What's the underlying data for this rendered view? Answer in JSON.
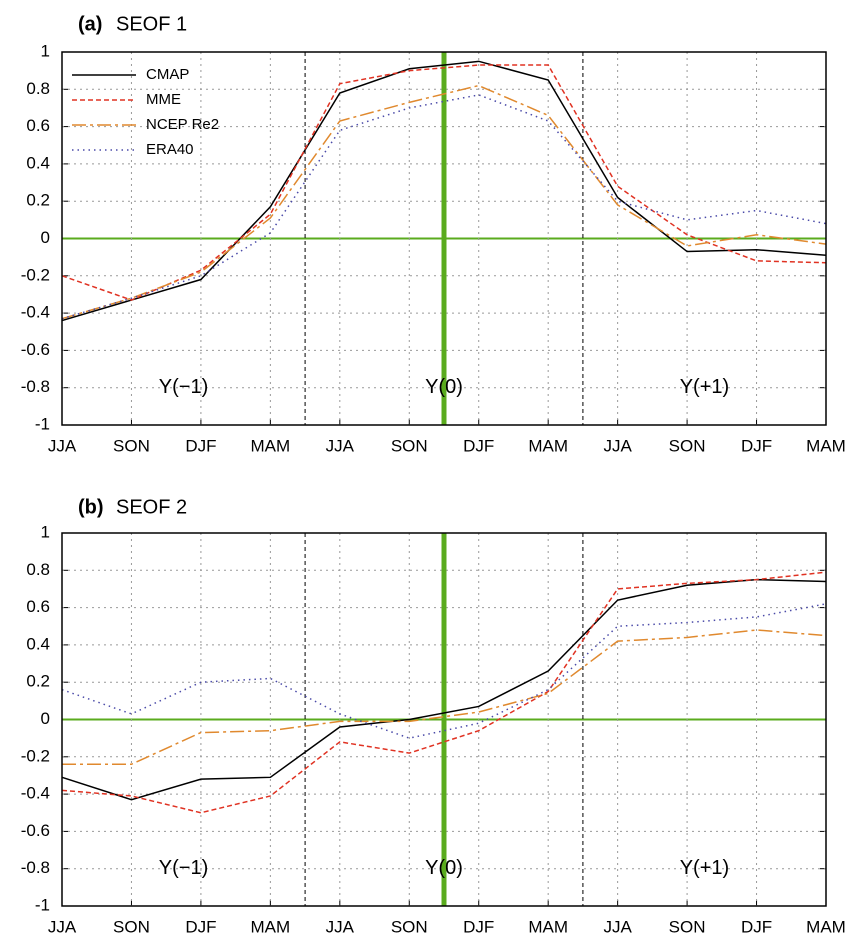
{
  "chart_data": [
    {
      "type": "line",
      "label": "(a)",
      "title": "SEOF 1",
      "categories": [
        "JJA",
        "SON",
        "DJF",
        "MAM",
        "JJA",
        "SON",
        "DJF",
        "MAM",
        "JJA",
        "SON",
        "DJF",
        "MAM"
      ],
      "ylim": [
        -1,
        1
      ],
      "yticks": [
        -1,
        -0.8,
        -0.6,
        -0.4,
        -0.2,
        0,
        0.2,
        0.4,
        0.6,
        0.8,
        1
      ],
      "grid": true,
      "legend": "upper left",
      "annotations": [
        "Y(−1)",
        "Y(0)",
        "Y(+1)"
      ],
      "series": [
        {
          "name": "CMAP",
          "color": "#000000",
          "dash": "solid",
          "values": [
            -0.44,
            -0.33,
            -0.22,
            0.17,
            0.78,
            0.91,
            0.95,
            0.85,
            0.22,
            -0.07,
            -0.06,
            -0.09
          ]
        },
        {
          "name": "MME",
          "color": "#e03222",
          "dash": "dashed",
          "values": [
            -0.2,
            -0.33,
            -0.17,
            0.13,
            0.83,
            0.9,
            0.93,
            0.93,
            0.28,
            0.02,
            -0.12,
            -0.13
          ]
        },
        {
          "name": "NCEP Re2",
          "color": "#e0892e",
          "dash": "dashdot",
          "values": [
            -0.43,
            -0.32,
            -0.18,
            0.11,
            0.63,
            0.73,
            0.82,
            0.66,
            0.18,
            -0.04,
            0.02,
            -0.03
          ]
        },
        {
          "name": "ERA40",
          "color": "#4a4aa8",
          "dash": "dotted",
          "values": [
            -0.43,
            -0.32,
            -0.2,
            0.03,
            0.58,
            0.7,
            0.77,
            0.63,
            0.2,
            0.1,
            0.15,
            0.08
          ]
        }
      ]
    },
    {
      "type": "line",
      "label": "(b)",
      "title": "SEOF 2",
      "categories": [
        "JJA",
        "SON",
        "DJF",
        "MAM",
        "JJA",
        "SON",
        "DJF",
        "MAM",
        "JJA",
        "SON",
        "DJF",
        "MAM"
      ],
      "ylim": [
        -1,
        1
      ],
      "yticks": [
        -1,
        -0.8,
        -0.6,
        -0.4,
        -0.2,
        0,
        0.2,
        0.4,
        0.6,
        0.8,
        1
      ],
      "grid": true,
      "annotations": [
        "Y(−1)",
        "Y(0)",
        "Y(+1)"
      ],
      "series": [
        {
          "name": "CMAP",
          "color": "#000000",
          "dash": "solid",
          "values": [
            -0.31,
            -0.43,
            -0.32,
            -0.31,
            -0.04,
            0.0,
            0.07,
            0.26,
            0.64,
            0.72,
            0.75,
            0.74
          ]
        },
        {
          "name": "MME",
          "color": "#e03222",
          "dash": "dashed",
          "values": [
            -0.38,
            -0.41,
            -0.5,
            -0.41,
            -0.12,
            -0.18,
            -0.06,
            0.15,
            0.7,
            0.73,
            0.75,
            0.79
          ]
        },
        {
          "name": "NCEP Re2",
          "color": "#e0892e",
          "dash": "dashdot",
          "values": [
            -0.24,
            -0.24,
            -0.07,
            -0.06,
            -0.01,
            -0.01,
            0.04,
            0.14,
            0.42,
            0.44,
            0.48,
            0.45
          ]
        },
        {
          "name": "ERA40",
          "color": "#4a4aa8",
          "dash": "dotted",
          "values": [
            0.16,
            0.03,
            0.2,
            0.22,
            0.03,
            -0.1,
            -0.02,
            0.16,
            0.5,
            0.52,
            0.55,
            0.62
          ]
        }
      ]
    }
  ]
}
